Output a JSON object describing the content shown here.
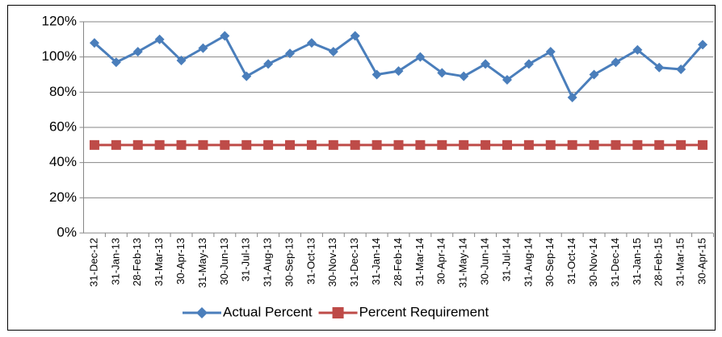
{
  "chart_data": {
    "type": "line",
    "categories": [
      "31-Dec-12",
      "31-Jan-13",
      "28-Feb-13",
      "31-Mar-13",
      "30-Apr-13",
      "31-May-13",
      "30-Jun-13",
      "31-Jul-13",
      "31-Aug-13",
      "30-Sep-13",
      "31-Oct-13",
      "30-Nov-13",
      "31-Dec-13",
      "31-Jan-14",
      "28-Feb-14",
      "31-Mar-14",
      "30-Apr-14",
      "31-May-14",
      "30-Jun-14",
      "31-Jul-14",
      "31-Aug-14",
      "30-Sep-14",
      "31-Oct-14",
      "30-Nov-14",
      "31-Dec-14",
      "31-Jan-15",
      "28-Feb-15",
      "31-Mar-15",
      "30-Apr-15"
    ],
    "series": [
      {
        "name": "Actual Percent",
        "color": "#4a7ebb",
        "marker": "diamond",
        "values": [
          108,
          97,
          103,
          110,
          98,
          105,
          112,
          89,
          96,
          102,
          108,
          103,
          112,
          90,
          92,
          100,
          91,
          89,
          96,
          87,
          96,
          103,
          77,
          90,
          97,
          104,
          94,
          93,
          107
        ]
      },
      {
        "name": "Percent Requirement",
        "color": "#be4b48",
        "marker": "square",
        "values": [
          50,
          50,
          50,
          50,
          50,
          50,
          50,
          50,
          50,
          50,
          50,
          50,
          50,
          50,
          50,
          50,
          50,
          50,
          50,
          50,
          50,
          50,
          50,
          50,
          50,
          50,
          50,
          50,
          50
        ]
      }
    ],
    "ylim": [
      0,
      120
    ],
    "yticks": [
      {
        "value": 0,
        "label": "0%"
      },
      {
        "value": 20,
        "label": "20%"
      },
      {
        "value": 40,
        "label": "40%"
      },
      {
        "value": 60,
        "label": "60%"
      },
      {
        "value": 80,
        "label": "80%"
      },
      {
        "value": 100,
        "label": "100%"
      },
      {
        "value": 120,
        "label": "120%"
      }
    ],
    "grid": true,
    "legend": "bottom"
  }
}
